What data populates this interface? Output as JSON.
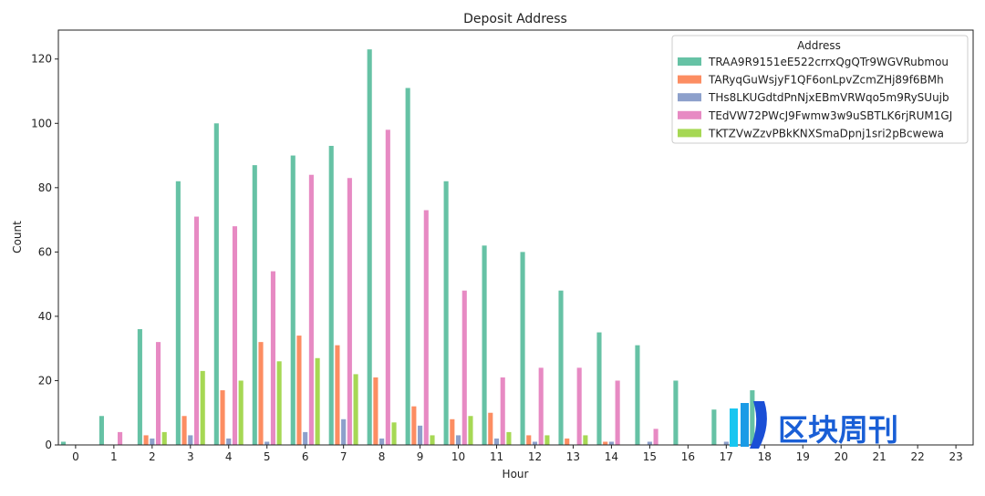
{
  "chart_data": {
    "type": "bar",
    "title": "Deposit Address",
    "xlabel": "Hour",
    "ylabel": "Count",
    "ylim": [
      0,
      129
    ],
    "yticks": [
      0,
      20,
      40,
      60,
      80,
      100,
      120
    ],
    "grid": false,
    "legend": {
      "title": "Address",
      "placement": "top-right"
    },
    "categories": [
      "0",
      "1",
      "2",
      "3",
      "4",
      "5",
      "6",
      "7",
      "8",
      "9",
      "10",
      "11",
      "12",
      "13",
      "14",
      "15",
      "16",
      "17",
      "18",
      "19",
      "20",
      "21",
      "22",
      "23"
    ],
    "series": [
      {
        "name": "TRAA9R9151eE522crrxQgQTr9WGVRubmou",
        "color": "#66c2a5",
        "values": [
          1,
          9,
          36,
          82,
          100,
          87,
          90,
          93,
          123,
          111,
          82,
          62,
          60,
          48,
          35,
          31,
          20,
          11,
          17,
          0,
          0,
          0,
          0,
          0
        ]
      },
      {
        "name": "TARyqGuWsjyF1QF6onLpvZcmZHj89f6BMh",
        "color": "#fc8d62",
        "values": [
          0,
          0,
          3,
          9,
          17,
          32,
          34,
          31,
          21,
          12,
          8,
          10,
          3,
          2,
          1,
          0,
          0,
          0,
          0,
          0,
          0,
          0,
          0,
          0
        ]
      },
      {
        "name": "THs8LKUGdtdPnNjxEBmVRWqo5m9RySUujb",
        "color": "#8da0cb",
        "values": [
          0,
          0,
          2,
          3,
          2,
          1,
          4,
          8,
          2,
          6,
          3,
          2,
          1,
          0,
          1,
          1,
          0,
          1,
          0,
          0,
          0,
          0,
          0,
          0
        ]
      },
      {
        "name": "TEdVW72PWcJ9Fwmw3w9uSBTLK6rjRUM1GJ",
        "color": "#e78ac3",
        "values": [
          0,
          4,
          32,
          71,
          68,
          54,
          84,
          83,
          98,
          73,
          48,
          21,
          24,
          24,
          20,
          5,
          0,
          0,
          0,
          0,
          0,
          0,
          0,
          0
        ]
      },
      {
        "name": "TKTZVwZzvPBkKNXSmaDpnj1sri2pBcwewa",
        "color": "#a6d854",
        "values": [
          0,
          0,
          4,
          23,
          20,
          26,
          27,
          22,
          7,
          3,
          9,
          4,
          3,
          3,
          0,
          0,
          0,
          0,
          0,
          0,
          0,
          0,
          0,
          0
        ]
      }
    ]
  },
  "watermark": {
    "text": "区块周刊",
    "logo_icon": "bar-logo-icon",
    "logo_colors": [
      "#19c6f0",
      "#1a4fd6"
    ]
  }
}
